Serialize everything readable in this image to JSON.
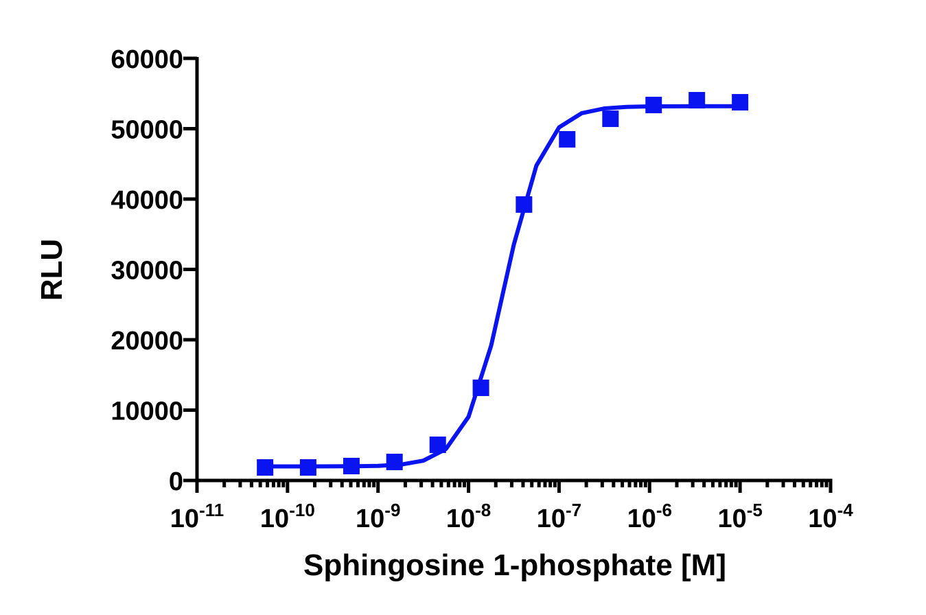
{
  "chart_data": {
    "type": "scatter",
    "x_label": "Sphingosine 1-phosphate [M]",
    "y_label": "RLU",
    "xscale": "log",
    "color": "#0a14f0",
    "x": [
      5.65e-11,
      1.69e-10,
      5.08e-10,
      1.52e-09,
      4.57e-09,
      1.37e-08,
      4.1e-08,
      1.23e-07,
      3.7e-07,
      1.11e-06,
      3.33e-06,
      1e-05
    ],
    "values": [
      1850,
      1850,
      2050,
      2630,
      5070,
      13170,
      39220,
      48490,
      51410,
      53370,
      54050,
      53760
    ],
    "curve": {
      "x": [
        5.62e-11,
        1e-10,
        1.78e-10,
        3.16e-10,
        5.62e-10,
        1e-09,
        1.78e-09,
        3.16e-09,
        5.62e-09,
        1e-08,
        1.78e-08,
        3.16e-08,
        5.62e-08,
        1e-07,
        1.78e-07,
        3.16e-07,
        5.62e-07,
        1e-06,
        3.16e-06,
        1e-05
      ],
      "values": [
        2000,
        2001,
        2003,
        2008,
        2026,
        2082,
        2258,
        2806,
        4465,
        9062,
        19198,
        33508,
        44748,
        50188,
        52207,
        52882,
        53099,
        53168,
        53195,
        53200
      ]
    },
    "xlim": [
      1e-11,
      0.0001
    ],
    "ylim": [
      0,
      60000
    ],
    "yticks": [
      0,
      10000,
      20000,
      30000,
      40000,
      50000,
      60000
    ],
    "xticks": [
      {
        "value": 1e-11,
        "label": "10",
        "exponent": "-11"
      },
      {
        "value": 1e-10,
        "label": "10",
        "exponent": "-10"
      },
      {
        "value": 1e-09,
        "label": "10",
        "exponent": "-9"
      },
      {
        "value": 1e-08,
        "label": "10",
        "exponent": "-8"
      },
      {
        "value": 1e-07,
        "label": "10",
        "exponent": "-7"
      },
      {
        "value": 1e-06,
        "label": "10",
        "exponent": "-6"
      },
      {
        "value": 1e-05,
        "label": "10",
        "exponent": "-5"
      },
      {
        "value": 0.0001,
        "label": "10",
        "exponent": "-4"
      }
    ],
    "xminorticks": [
      2e-11,
      3e-11,
      4e-11,
      5e-11,
      6e-11,
      7e-11,
      8e-11,
      9e-11,
      2e-10,
      3e-10,
      4e-10,
      5e-10,
      6e-10,
      7e-10,
      8e-10,
      9e-10,
      2e-09,
      3e-09,
      4e-09,
      5e-09,
      6e-09,
      7e-09,
      8e-09,
      9e-09,
      2e-08,
      3e-08,
      4e-08,
      5e-08,
      6e-08,
      7e-08,
      8e-08,
      9e-08,
      2e-07,
      3e-07,
      4e-07,
      5e-07,
      6e-07,
      7e-07,
      8e-07,
      9e-07,
      2e-06,
      3e-06,
      4e-06,
      5e-06,
      6e-06,
      7e-06,
      8e-06,
      9e-06,
      2e-05,
      3e-05,
      4e-05,
      5e-05,
      6e-05,
      7e-05,
      8e-05,
      9e-05
    ]
  }
}
